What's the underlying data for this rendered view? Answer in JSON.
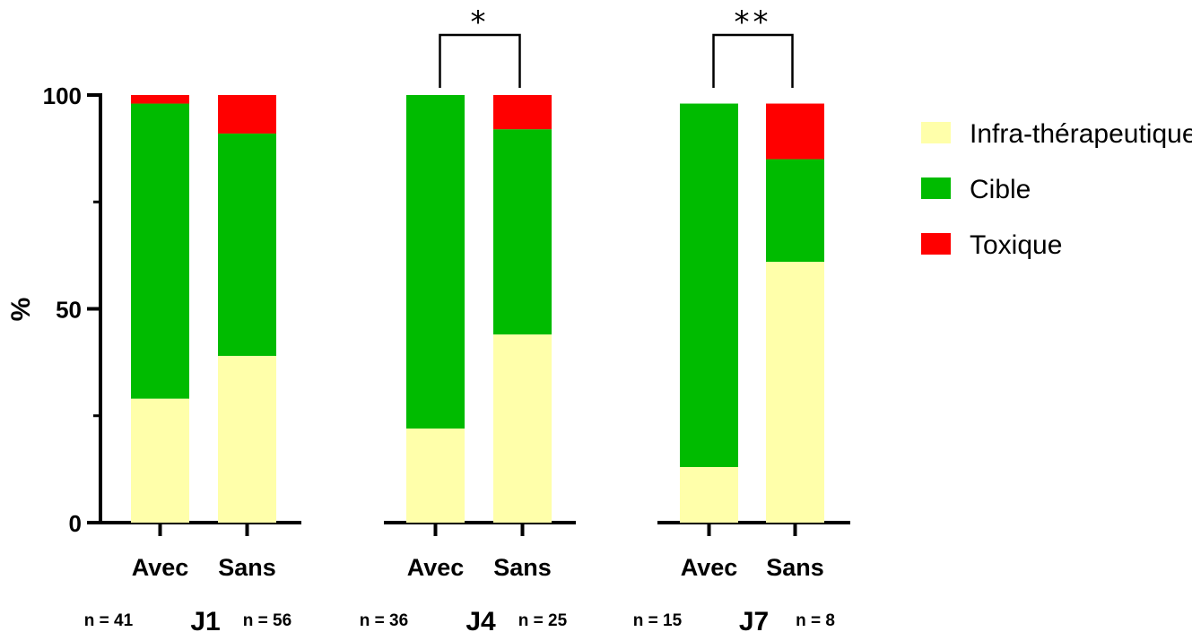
{
  "chart_data": {
    "type": "bar",
    "stacked": true,
    "ylabel": "%",
    "ylim": [
      0,
      100
    ],
    "yticks": [
      "0",
      "50",
      "100"
    ],
    "legend_position": "right",
    "series": [
      {
        "name": "Infra-thérapeutique",
        "color": "#FFFFAA"
      },
      {
        "name": "Cible",
        "color": "#00BB00"
      },
      {
        "name": "Toxique",
        "color": "#FF0000"
      }
    ],
    "groups": [
      {
        "label": "J1",
        "significance": "",
        "bars": [
          {
            "category": "Avec",
            "n_label": "n = 41",
            "values": [
              29,
              69,
              2
            ]
          },
          {
            "category": "Sans",
            "n_label": "n = 56",
            "values": [
              39,
              52,
              9
            ]
          }
        ]
      },
      {
        "label": "J4",
        "significance": "*",
        "bars": [
          {
            "category": "Avec",
            "n_label": "n = 36",
            "values": [
              22,
              78,
              0
            ]
          },
          {
            "category": "Sans",
            "n_label": "n = 25",
            "values": [
              44,
              48,
              8
            ]
          }
        ]
      },
      {
        "label": "J7",
        "significance": "**",
        "bars": [
          {
            "category": "Avec",
            "n_label": "n = 15",
            "values": [
              13,
              85,
              0
            ]
          },
          {
            "category": "Sans",
            "n_label": "n = 8",
            "values": [
              61,
              24,
              13
            ]
          }
        ]
      }
    ]
  }
}
